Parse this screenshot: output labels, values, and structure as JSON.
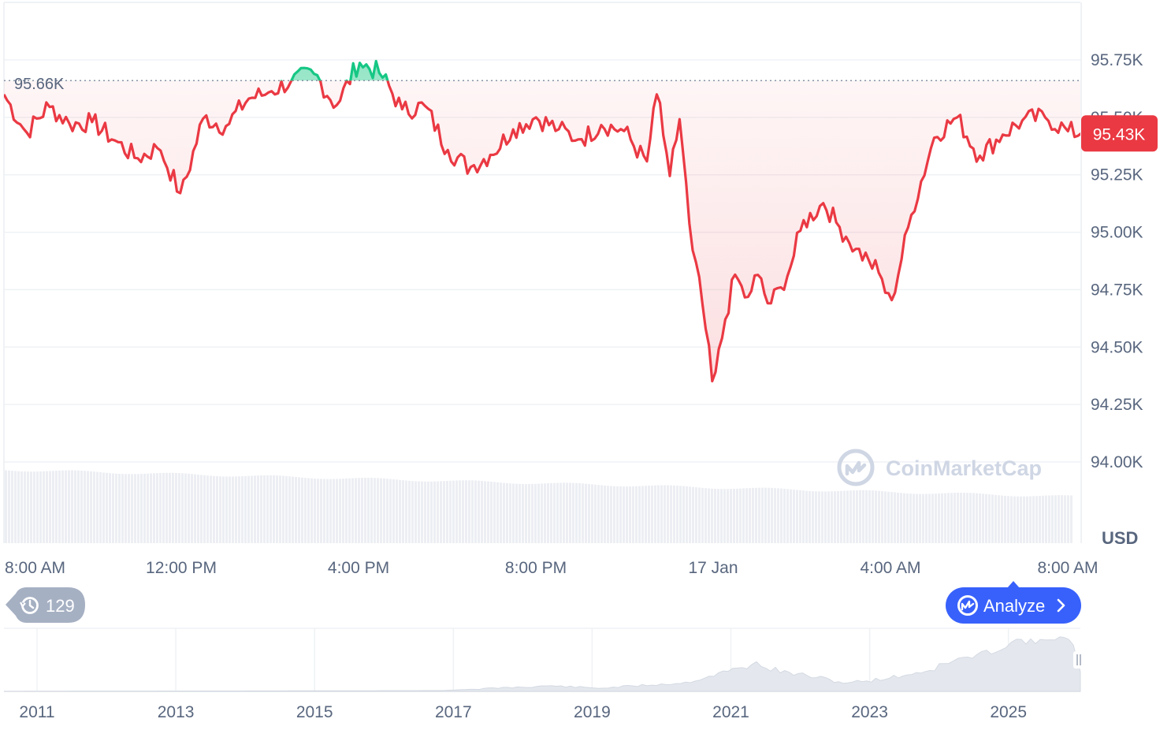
{
  "chart_data": {
    "type": "line",
    "currency": "USD",
    "ylim": [
      93.8,
      95.95
    ],
    "y_ticks": [
      "95.75K",
      "95.50K",
      "95.25K",
      "95.00K",
      "94.75K",
      "94.50K",
      "94.25K",
      "94.00K"
    ],
    "y_tick_values": [
      95.75,
      95.5,
      95.25,
      95.0,
      94.75,
      94.5,
      94.25,
      94.0
    ],
    "x_ticks": [
      "8:00 AM",
      "12:00 PM",
      "4:00 PM",
      "8:00 PM",
      "17 Jan",
      "4:00 AM",
      "8:00 AM"
    ],
    "x_tick_hours": [
      0,
      4,
      8,
      12,
      16,
      20,
      24
    ],
    "reference_value": 95.66,
    "reference_label": "95.66K",
    "current_value": 95.43,
    "current_label": "95.43K",
    "series": [
      {
        "color_up": "#16c784",
        "color_down": "#ea3943",
        "x_hours": [
          0,
          0.5,
          1.0,
          1.5,
          2.0,
          2.5,
          3.0,
          3.5,
          4.0,
          4.5,
          5.0,
          5.5,
          6.0,
          6.5,
          7.0,
          7.5,
          8.0,
          8.5,
          9.0,
          9.5,
          10.0,
          10.5,
          11.0,
          11.5,
          12.0,
          12.5,
          13.0,
          13.5,
          14.0,
          14.5,
          14.75,
          15.0,
          15.25,
          15.5,
          15.75,
          16.0,
          16.25,
          16.5,
          16.75,
          17.0,
          17.25,
          17.5,
          17.75,
          18.0,
          18.5,
          18.75,
          19.0,
          19.25,
          19.5,
          19.75,
          20.0,
          20.5,
          21.0,
          21.5,
          22.0,
          22.5,
          23.0,
          23.5,
          24.0,
          24.3
        ],
        "values": [
          95.6,
          95.43,
          95.55,
          95.47,
          95.48,
          95.4,
          95.32,
          95.37,
          95.16,
          95.5,
          95.46,
          95.58,
          95.61,
          95.66,
          95.69,
          95.55,
          95.74,
          95.69,
          95.53,
          95.55,
          95.36,
          95.28,
          95.34,
          95.45,
          95.5,
          95.45,
          95.4,
          95.47,
          95.44,
          95.3,
          95.63,
          95.22,
          95.5,
          94.96,
          94.7,
          94.32,
          94.6,
          94.82,
          94.7,
          94.82,
          94.68,
          94.75,
          94.85,
          95.03,
          95.13,
          95.05,
          94.98,
          94.92,
          94.88,
          94.82,
          94.68,
          95.1,
          95.42,
          95.5,
          95.33,
          95.42,
          95.49,
          95.5,
          95.44,
          95.43
        ]
      }
    ],
    "volume_note": "",
    "navigator": {
      "x_ticks": [
        "2011",
        "2013",
        "2015",
        "2017",
        "2019",
        "2021",
        "2023",
        "2025"
      ]
    }
  },
  "ui": {
    "watermark": "CoinMarketCap",
    "history_count": "129",
    "analyze_label": "Analyze",
    "colors": {
      "down": "#ea3943",
      "up": "#16c784",
      "accent": "#3861fb",
      "history_bg": "#a6b0c3"
    }
  }
}
